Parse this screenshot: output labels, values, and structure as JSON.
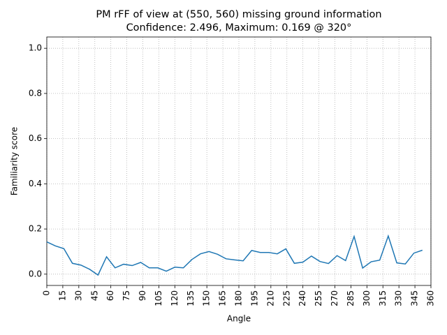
{
  "chart_data": {
    "type": "line",
    "title": "PM rFF of view at (550, 560) missing ground information",
    "subtitle": "Confidence: 2.496, Maximum: 0.169 @ 320°",
    "x_label": "Angle",
    "y_label": "Familiarity score",
    "x": [
      0,
      8,
      16,
      24,
      32,
      40,
      48,
      56,
      64,
      72,
      80,
      88,
      96,
      104,
      112,
      120,
      128,
      136,
      144,
      152,
      160,
      168,
      176,
      184,
      192,
      200,
      208,
      216,
      224,
      232,
      240,
      248,
      256,
      264,
      272,
      280,
      288,
      296,
      304,
      312,
      320,
      328,
      336,
      344,
      352
    ],
    "values": [
      0.143,
      0.125,
      0.113,
      0.048,
      0.04,
      0.022,
      -0.004,
      0.077,
      0.028,
      0.044,
      0.038,
      0.052,
      0.028,
      0.028,
      0.013,
      0.031,
      0.028,
      0.065,
      0.09,
      0.1,
      0.088,
      0.068,
      0.063,
      0.059,
      0.105,
      0.096,
      0.096,
      0.09,
      0.112,
      0.048,
      0.053,
      0.08,
      0.056,
      0.047,
      0.082,
      0.06,
      0.167,
      0.027,
      0.055,
      0.062,
      0.169,
      0.05,
      0.045,
      0.093,
      0.106
    ],
    "color": "#1f77b4",
    "xlim": [
      0,
      360
    ],
    "xticks": [
      0,
      15,
      30,
      45,
      60,
      75,
      90,
      105,
      120,
      135,
      150,
      165,
      180,
      195,
      210,
      225,
      240,
      255,
      270,
      285,
      300,
      315,
      330,
      345,
      360
    ],
    "ylim": [
      -0.05,
      1.05
    ],
    "yticks": [
      {
        "value": 0,
        "label": "0.0"
      },
      {
        "value": 0.2,
        "label": "0.2"
      },
      {
        "value": 0.4,
        "label": "0.4"
      },
      {
        "value": 0.6,
        "label": "0.6"
      },
      {
        "value": 0.8,
        "label": "0.8"
      },
      {
        "value": 1,
        "label": "1.0"
      }
    ],
    "grid": true
  }
}
